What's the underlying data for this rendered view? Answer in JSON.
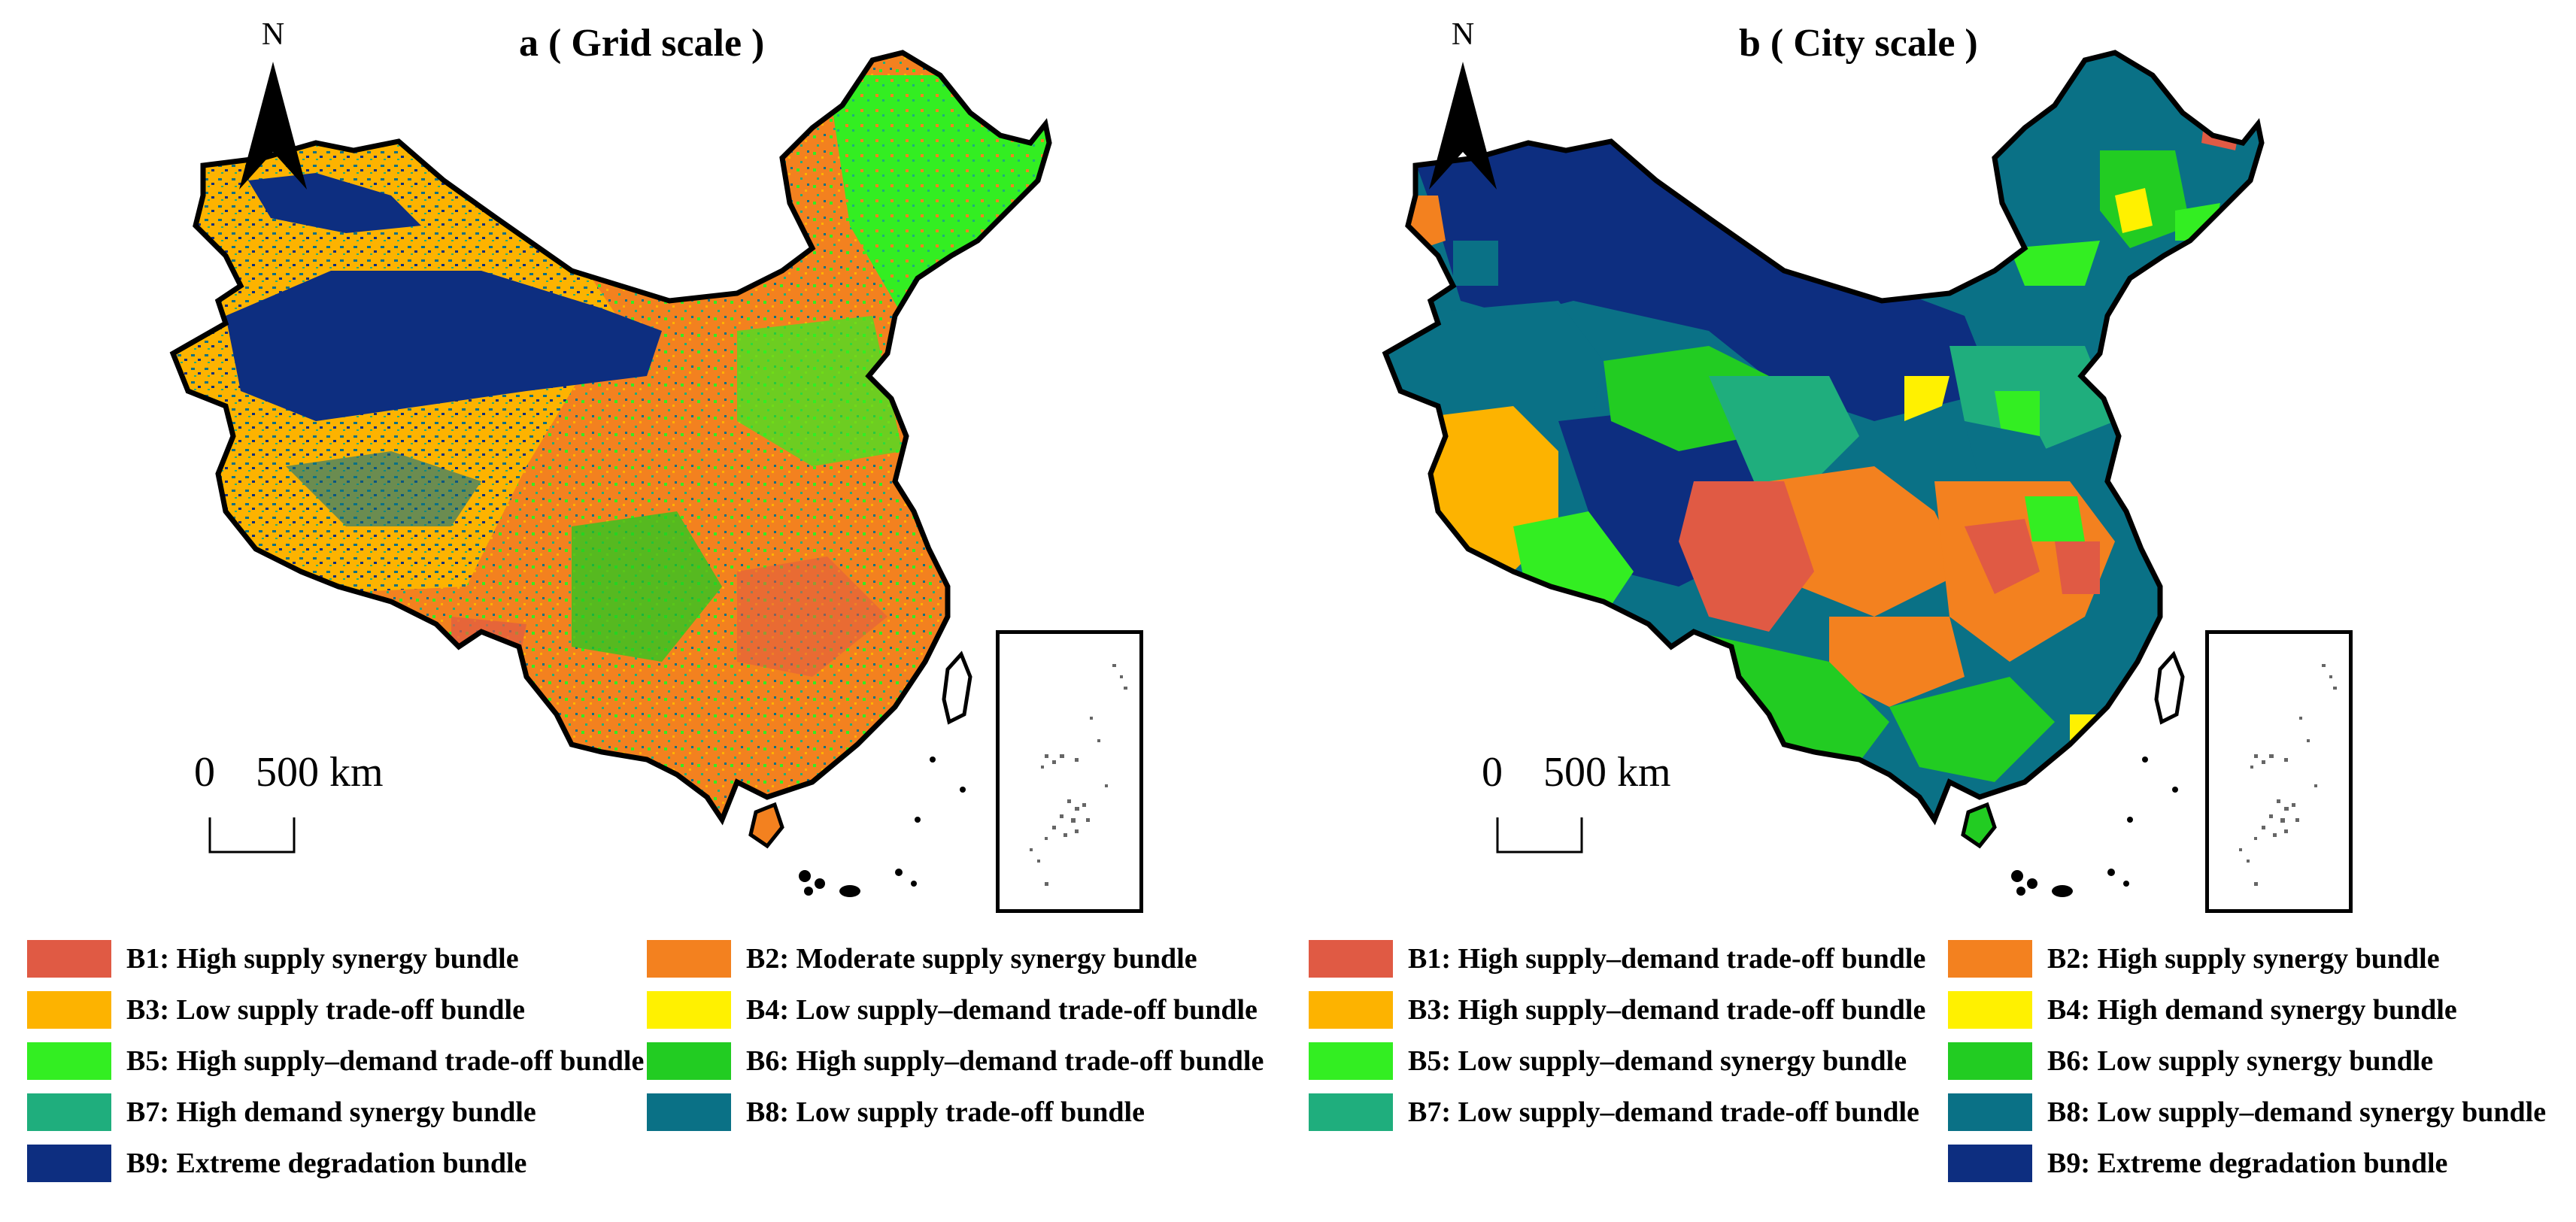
{
  "panels": [
    {
      "title": "a ( Grid scale )",
      "north": "N",
      "scale_zero": "0",
      "scale_text": "500 km",
      "legend": [
        {
          "label": "B1: High supply synergy bundle",
          "color": "#E05A44"
        },
        {
          "label": "B2: Moderate supply synergy bundle",
          "color": "#F3811F"
        },
        {
          "label": "B3: Low supply trade-off bundle",
          "color": "#FDB300"
        },
        {
          "label": "B4: Low supply–demand trade-off bundle",
          "color": "#FFF100"
        },
        {
          "label": "B5: High supply–demand trade-off bundle",
          "color": "#33EE22"
        },
        {
          "label": "B6: High supply–demand trade-off bundle",
          "color": "#22CC22"
        },
        {
          "label": "B7: High demand synergy bundle",
          "color": "#1FAE7D"
        },
        {
          "label": "B8: Low supply trade-off bundle",
          "color": "#0A7186"
        },
        {
          "label": "B9: Extreme degradation bundle",
          "color": "#0D2E80"
        }
      ]
    },
    {
      "title": "b ( City scale )",
      "north": "N",
      "scale_zero": "0",
      "scale_text": "500 km",
      "legend": [
        {
          "label": "B1: High supply–demand trade-off bundle",
          "color": "#E05A44"
        },
        {
          "label": "B2: High supply synergy bundle",
          "color": "#F3811F"
        },
        {
          "label": "B3: High supply–demand trade-off bundle",
          "color": "#FDB300"
        },
        {
          "label": "B4: High demand synergy bundle",
          "color": "#FFF100"
        },
        {
          "label": "B5: Low supply–demand synergy bundle",
          "color": "#33EE22"
        },
        {
          "label": "B6: Low supply synergy bundle",
          "color": "#22CC22"
        },
        {
          "label": "B7: Low supply–demand trade-off bundle",
          "color": "#1FAE7D"
        },
        {
          "label": "B8: Low supply–demand synergy bundle",
          "color": "#0A7186"
        },
        {
          "label": "B9: Extreme degradation bundle",
          "color": "#0D2E80"
        }
      ]
    }
  ]
}
